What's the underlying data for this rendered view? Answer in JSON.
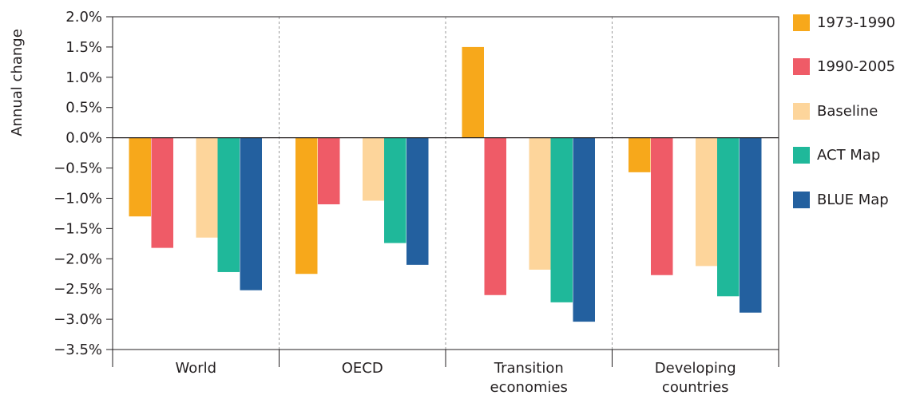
{
  "chart_data": {
    "type": "bar",
    "title": "",
    "xlabel": "",
    "ylabel": "Annual change",
    "ylim": [
      -3.5,
      2.0
    ],
    "yticks": [
      2.0,
      1.5,
      1.0,
      0.5,
      0.0,
      -0.5,
      -1.0,
      -1.5,
      -2.0,
      -2.5,
      -3.0,
      -3.5
    ],
    "ytick_labels": [
      "2.0%",
      "1.5%",
      "1.0%",
      "0.5%",
      "0.0%",
      "−0.5%",
      "−1.0%",
      "−1.5%",
      "−2.0%",
      "−2.5%",
      "−3.0%",
      "−3.5%"
    ],
    "categories": [
      [
        "World"
      ],
      [
        "OECD"
      ],
      [
        "Transition",
        "economies"
      ],
      [
        "Developing",
        "countries"
      ]
    ],
    "series": [
      {
        "name": "1973-1990",
        "color": "#f7a81b",
        "values": [
          -1.3,
          -2.25,
          1.5,
          -0.57
        ]
      },
      {
        "name": "1990-2005",
        "color": "#ef5b67",
        "values": [
          -1.82,
          -1.1,
          -2.6,
          -2.27
        ]
      },
      {
        "name": "Baseline",
        "color": "#fdd59b",
        "values": [
          -1.65,
          -1.04,
          -2.18,
          -2.12
        ]
      },
      {
        "name": "ACT Map",
        "color": "#1fb89a",
        "values": [
          -2.22,
          -1.74,
          -2.72,
          -2.62
        ]
      },
      {
        "name": "BLUE Map",
        "color": "#23609f",
        "values": [
          -2.52,
          -2.1,
          -3.04,
          -2.89
        ]
      }
    ],
    "grid": false,
    "legend_position": "right"
  }
}
